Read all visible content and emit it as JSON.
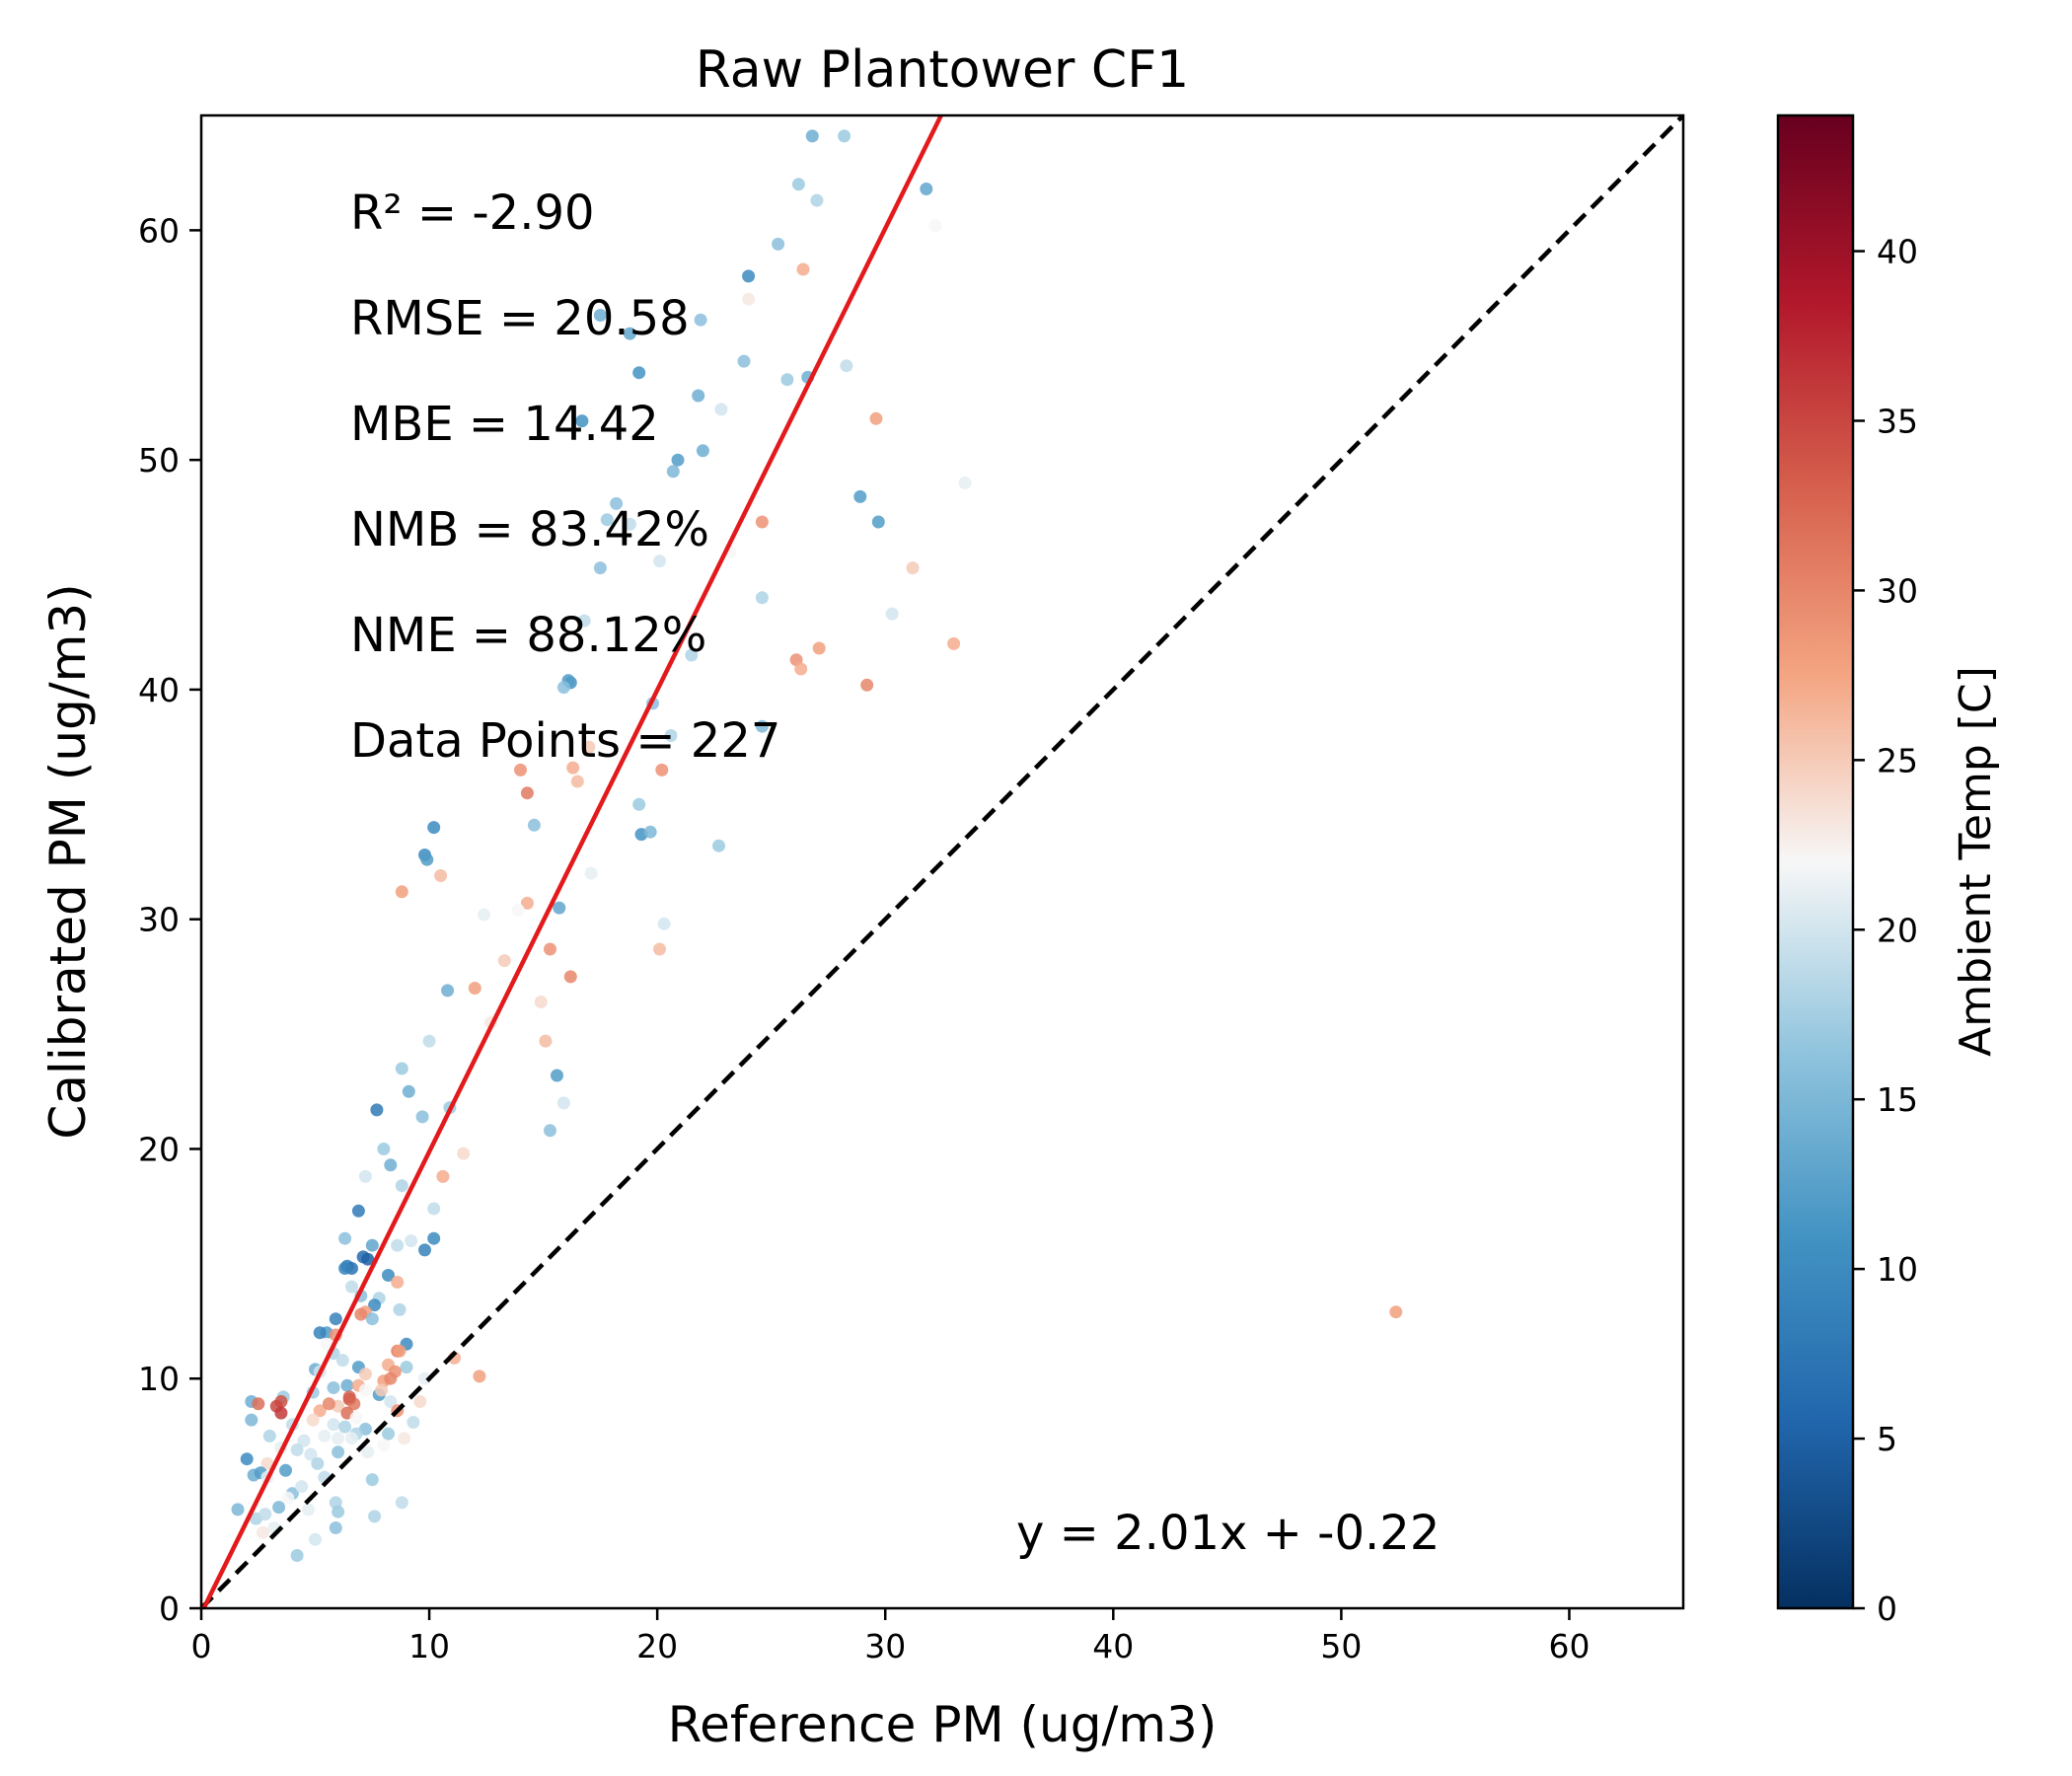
{
  "chart_data": {
    "type": "scatter",
    "title": "Raw Plantower CF1",
    "xlabel": "Reference PM (ug/m3)",
    "ylabel": "Calibrated PM (ug/m3)",
    "xlim": [
      0,
      65
    ],
    "ylim": [
      0,
      65
    ],
    "xticks": [
      0,
      10,
      20,
      30,
      40,
      50,
      60
    ],
    "yticks": [
      0,
      10,
      20,
      30,
      40,
      50,
      60
    ],
    "grid": false,
    "stats": [
      "R² = -2.90",
      "RMSE = 20.58",
      "MBE = 14.42",
      "NMB = 83.42%",
      "NME = 88.12%",
      "Data Points = 227"
    ],
    "fit_equation": "y = 2.01x + -0.22",
    "fit_line": {
      "slope": 2.01,
      "intercept": -0.22,
      "color": "#e31a1c"
    },
    "identity_line": {
      "slope": 1,
      "intercept": 0,
      "color": "#000000",
      "style": "dashed"
    },
    "colorbar": {
      "label": "Ambient Temp [C]",
      "range": [
        0,
        44
      ],
      "ticks": [
        0,
        5,
        10,
        15,
        20,
        25,
        30,
        35,
        40
      ],
      "colormap": "RdBu_r"
    },
    "points": [
      [
        26.8,
        64.1,
        14
      ],
      [
        28.2,
        64.1,
        17
      ],
      [
        31.8,
        61.8,
        13
      ],
      [
        27.0,
        61.3,
        18
      ],
      [
        26.2,
        62.0,
        17
      ],
      [
        32.2,
        60.2,
        22
      ],
      [
        24.0,
        58.0,
        10
      ],
      [
        26.4,
        58.3,
        27
      ],
      [
        25.3,
        59.4,
        16
      ],
      [
        24.0,
        57.0,
        23
      ],
      [
        17.5,
        56.3,
        14
      ],
      [
        21.9,
        56.1,
        16
      ],
      [
        18.8,
        55.5,
        13
      ],
      [
        23.8,
        54.3,
        16
      ],
      [
        19.2,
        53.8,
        11
      ],
      [
        26.6,
        53.6,
        14
      ],
      [
        25.7,
        53.5,
        17
      ],
      [
        28.3,
        54.1,
        19
      ],
      [
        21.8,
        52.8,
        14
      ],
      [
        29.6,
        51.8,
        28
      ],
      [
        16.7,
        51.7,
        11
      ],
      [
        20.9,
        50.0,
        12
      ],
      [
        22.0,
        50.4,
        14
      ],
      [
        20.7,
        49.5,
        15
      ],
      [
        33.5,
        49.0,
        21
      ],
      [
        28.9,
        48.4,
        12
      ],
      [
        18.2,
        48.1,
        16
      ],
      [
        17.8,
        47.4,
        17
      ],
      [
        18.8,
        47.2,
        19
      ],
      [
        29.7,
        47.3,
        12
      ],
      [
        24.6,
        47.3,
        29
      ],
      [
        17.5,
        45.3,
        16
      ],
      [
        20.1,
        45.6,
        20
      ],
      [
        31.2,
        45.3,
        25
      ],
      [
        24.6,
        44.0,
        18
      ],
      [
        30.3,
        43.3,
        20
      ],
      [
        33.0,
        42.0,
        27
      ],
      [
        27.1,
        41.8,
        28
      ],
      [
        26.1,
        41.3,
        29
      ],
      [
        26.3,
        40.9,
        27
      ],
      [
        29.2,
        40.2,
        30
      ],
      [
        16.2,
        40.3,
        11
      ],
      [
        16.1,
        40.4,
        12
      ],
      [
        15.9,
        40.1,
        16
      ],
      [
        24.6,
        38.4,
        15
      ],
      [
        20.6,
        38.0,
        18
      ],
      [
        20.2,
        36.5,
        29
      ],
      [
        16.3,
        36.6,
        27
      ],
      [
        17.0,
        37.5,
        25
      ],
      [
        16.5,
        36.0,
        26
      ],
      [
        14.0,
        36.5,
        29
      ],
      [
        14.3,
        35.5,
        31
      ],
      [
        19.2,
        35.0,
        17
      ],
      [
        19.3,
        33.7,
        11
      ],
      [
        19.7,
        33.8,
        15
      ],
      [
        22.7,
        33.2,
        17
      ],
      [
        14.6,
        34.1,
        16
      ],
      [
        10.2,
        34.0,
        10
      ],
      [
        9.8,
        32.8,
        10
      ],
      [
        9.9,
        32.6,
        12
      ],
      [
        10.5,
        31.9,
        26
      ],
      [
        8.8,
        31.2,
        28
      ],
      [
        14.3,
        30.7,
        27
      ],
      [
        13.9,
        30.4,
        22
      ],
      [
        15.7,
        30.5,
        13
      ],
      [
        20.3,
        29.8,
        20
      ],
      [
        20.1,
        28.7,
        26
      ],
      [
        15.3,
        28.7,
        29
      ],
      [
        16.2,
        27.5,
        30
      ],
      [
        10.8,
        26.9,
        14
      ],
      [
        12.0,
        27.0,
        28
      ],
      [
        15.1,
        24.7,
        26
      ],
      [
        10.0,
        24.7,
        19
      ],
      [
        15.6,
        23.2,
        12
      ],
      [
        8.8,
        23.5,
        17
      ],
      [
        9.1,
        22.5,
        14
      ],
      [
        15.9,
        22.0,
        20
      ],
      [
        7.7,
        21.7,
        8
      ],
      [
        9.7,
        21.4,
        16
      ],
      [
        15.3,
        20.8,
        16
      ],
      [
        8.0,
        20.0,
        17
      ],
      [
        10.6,
        18.8,
        27
      ],
      [
        7.2,
        18.8,
        20
      ],
      [
        8.8,
        18.4,
        18
      ],
      [
        6.9,
        17.3,
        8
      ],
      [
        10.2,
        16.1,
        10
      ],
      [
        9.8,
        15.6,
        9
      ],
      [
        6.3,
        16.1,
        16
      ],
      [
        7.5,
        15.8,
        13
      ],
      [
        7.1,
        15.3,
        6
      ],
      [
        7.3,
        15.2,
        5
      ],
      [
        8.6,
        15.8,
        19
      ],
      [
        6.4,
        14.9,
        8
      ],
      [
        6.6,
        14.8,
        7
      ],
      [
        6.3,
        14.8,
        9
      ],
      [
        8.2,
        14.5,
        10
      ],
      [
        8.6,
        14.2,
        27
      ],
      [
        6.6,
        14.0,
        19
      ],
      [
        7.8,
        13.5,
        18
      ],
      [
        7.6,
        13.2,
        10
      ],
      [
        8.7,
        13.0,
        18
      ],
      [
        7.2,
        12.9,
        28
      ],
      [
        7.0,
        12.8,
        30
      ],
      [
        5.9,
        12.6,
        9
      ],
      [
        7.5,
        12.6,
        16
      ],
      [
        5.5,
        12.0,
        12
      ],
      [
        5.9,
        11.9,
        29
      ],
      [
        5.2,
        12.0,
        9
      ],
      [
        9.0,
        11.5,
        10
      ],
      [
        8.6,
        11.2,
        31
      ],
      [
        8.7,
        11.2,
        28
      ],
      [
        5.8,
        11.1,
        18
      ],
      [
        11.1,
        10.9,
        27
      ],
      [
        5.0,
        10.4,
        14
      ],
      [
        6.9,
        10.5,
        12
      ],
      [
        8.2,
        10.6,
        27
      ],
      [
        9.0,
        10.5,
        17
      ],
      [
        5.2,
        10.3,
        20
      ],
      [
        7.2,
        10.2,
        25
      ],
      [
        12.2,
        10.1,
        28
      ],
      [
        8.5,
        10.3,
        29
      ],
      [
        8.0,
        9.9,
        28
      ],
      [
        8.3,
        10.0,
        30
      ],
      [
        6.4,
        9.7,
        14
      ],
      [
        5.8,
        9.6,
        16
      ],
      [
        6.9,
        9.7,
        27
      ],
      [
        7.2,
        9.5,
        22
      ],
      [
        4.9,
        9.4,
        17
      ],
      [
        7.8,
        9.3,
        12
      ],
      [
        3.6,
        9.2,
        17
      ],
      [
        2.2,
        9.0,
        14
      ],
      [
        3.5,
        9.0,
        34
      ],
      [
        2.5,
        8.9,
        32
      ],
      [
        3.3,
        8.8,
        35
      ],
      [
        6.5,
        9.1,
        34
      ],
      [
        6.7,
        8.9,
        31
      ],
      [
        8.3,
        9.0,
        20
      ],
      [
        6.0,
        8.8,
        25
      ],
      [
        5.2,
        8.6,
        27
      ],
      [
        3.5,
        8.5,
        36
      ],
      [
        6.4,
        8.5,
        32
      ],
      [
        8.6,
        8.6,
        29
      ],
      [
        2.2,
        8.2,
        15
      ],
      [
        4.9,
        8.2,
        24
      ],
      [
        5.8,
        8.0,
        20
      ],
      [
        9.3,
        8.1,
        19
      ],
      [
        6.3,
        7.9,
        18
      ],
      [
        7.2,
        7.8,
        16
      ],
      [
        6.8,
        7.6,
        18
      ],
      [
        5.4,
        7.5,
        21
      ],
      [
        8.2,
        7.6,
        17
      ],
      [
        6.0,
        7.4,
        21
      ],
      [
        8.9,
        7.4,
        23
      ],
      [
        4.5,
        7.3,
        20
      ],
      [
        3.5,
        7.0,
        21
      ],
      [
        6.0,
        6.8,
        16
      ],
      [
        4.2,
        6.9,
        19
      ],
      [
        4.8,
        6.7,
        20
      ],
      [
        2.0,
        6.5,
        10
      ],
      [
        2.9,
        6.3,
        24
      ],
      [
        5.1,
        6.3,
        18
      ],
      [
        3.7,
        6.0,
        12
      ],
      [
        2.3,
        5.8,
        14
      ],
      [
        2.6,
        5.9,
        12
      ],
      [
        2.9,
        5.7,
        21
      ],
      [
        7.5,
        5.6,
        17
      ],
      [
        4.0,
        5.0,
        16
      ],
      [
        1.6,
        4.3,
        15
      ],
      [
        3.4,
        4.4,
        15
      ],
      [
        4.7,
        4.3,
        21
      ],
      [
        5.9,
        4.6,
        18
      ],
      [
        6.0,
        4.2,
        17
      ],
      [
        8.8,
        4.6,
        19
      ],
      [
        2.4,
        3.9,
        18
      ],
      [
        5.9,
        3.5,
        16
      ],
      [
        3.2,
        3.5,
        21
      ],
      [
        7.6,
        4.0,
        18
      ],
      [
        5.0,
        3.0,
        20
      ],
      [
        4.2,
        2.3,
        17
      ],
      [
        52.4,
        12.9,
        28
      ],
      [
        11.1,
        10.9,
        26
      ],
      [
        6.5,
        9.2,
        33
      ],
      [
        7.9,
        9.5,
        25
      ],
      [
        5.6,
        8.9,
        30
      ],
      [
        6.8,
        8.3,
        22
      ],
      [
        4.0,
        8.0,
        19
      ],
      [
        3.0,
        7.5,
        18
      ],
      [
        9.6,
        9.0,
        24
      ],
      [
        6.2,
        10.8,
        19
      ],
      [
        5.5,
        11.5,
        22
      ],
      [
        7.0,
        13.6,
        16
      ],
      [
        9.2,
        16.0,
        20
      ],
      [
        8.3,
        19.3,
        14
      ],
      [
        11.5,
        19.8,
        24
      ],
      [
        12.7,
        25.5,
        23
      ],
      [
        17.1,
        32.0,
        21
      ],
      [
        21.5,
        41.5,
        18
      ],
      [
        23.2,
        46.0,
        22
      ],
      [
        19.8,
        39.4,
        16
      ],
      [
        12.4,
        30.2,
        21
      ],
      [
        14.9,
        26.4,
        24
      ],
      [
        10.9,
        21.8,
        17
      ],
      [
        16.8,
        43.0,
        19
      ],
      [
        22.8,
        52.2,
        20
      ],
      [
        13.3,
        28.2,
        25
      ],
      [
        10.2,
        17.4,
        19
      ],
      [
        4.4,
        5.3,
        20
      ],
      [
        3.8,
        4.8,
        22
      ],
      [
        2.8,
        4.1,
        19
      ],
      [
        7.3,
        6.8,
        21
      ],
      [
        8.0,
        7.1,
        22
      ],
      [
        9.8,
        10.0,
        21
      ],
      [
        5.4,
        5.7,
        19
      ],
      [
        2.7,
        3.3,
        23
      ],
      [
        6.6,
        7.4,
        21
      ]
    ]
  }
}
